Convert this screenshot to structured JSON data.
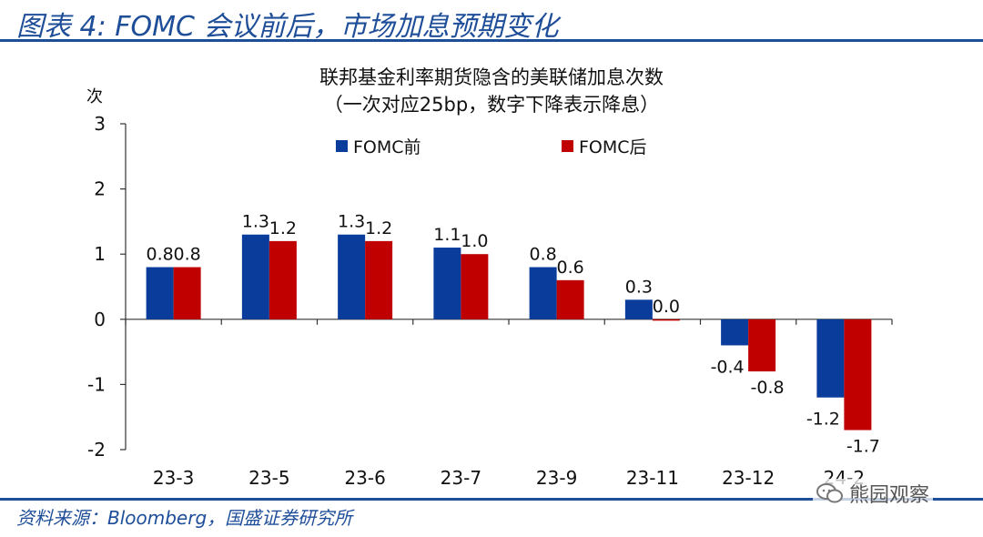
{
  "header": {
    "title": "图表 4:  FOMC 会议前后，市场加息预期变化"
  },
  "footer": {
    "source": "资料来源：Bloomberg，国盛证券研究所"
  },
  "watermark": {
    "text": "熊园观察",
    "icon": "wechat-icon"
  },
  "colors": {
    "accent": "#1f4e99",
    "before": "#0a3c9c",
    "after": "#c00000"
  },
  "chart_data": {
    "type": "bar",
    "title": "联邦基金利率期货隐含的美联储加息次数",
    "subtitle": "（一次对应25bp，数字下降表示降息）",
    "ylabel": "次",
    "xlabel": "",
    "ylim": [
      -2,
      3
    ],
    "yticks": [
      -2,
      -1,
      0,
      1,
      2,
      3
    ],
    "categories": [
      "23-3",
      "23-5",
      "23-6",
      "23-7",
      "23-9",
      "23-11",
      "23-12",
      "24-2"
    ],
    "series": [
      {
        "name": "FOMC前",
        "values": [
          0.8,
          1.3,
          1.3,
          1.1,
          0.8,
          0.3,
          -0.4,
          -1.2
        ],
        "value_labels": [
          "0.8",
          "1.3",
          "1.3",
          "1.1",
          "0.8",
          "0.3",
          "-0.4",
          "-1.2"
        ]
      },
      {
        "name": "FOMC后",
        "values": [
          0.8,
          1.2,
          1.2,
          1.0,
          0.6,
          0.0,
          -0.8,
          -1.7
        ],
        "value_labels": [
          "0.8",
          "1.2",
          "1.2",
          "1.0",
          "0.6",
          "0.0",
          "-0.8",
          "-1.7"
        ]
      }
    ],
    "legend_position": "top",
    "grid": false
  }
}
